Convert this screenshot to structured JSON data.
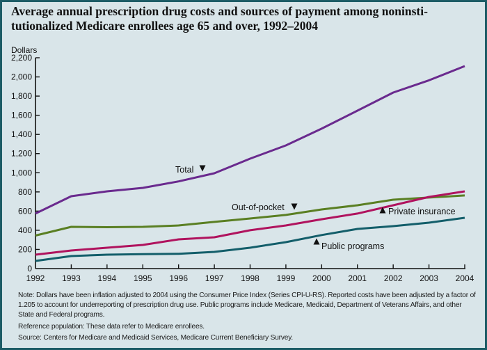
{
  "title": "Average annual prescription drug costs and sources of payment among noninsti-tutionalized Medicare enrollees age 65 and over, 1992–2004",
  "title_lines": [
    "Average annual prescription drug costs and sources of payment among noninsti-",
    "tutionalized Medicare enrollees age 65 and over, 1992–2004"
  ],
  "chart_data": {
    "type": "line",
    "title": "Average annual prescription drug costs and sources of payment among noninstitutionalized Medicare enrollees age 65 and over, 1992–2004",
    "xlabel": "",
    "ylabel": "Dollars",
    "x": [
      1992,
      1993,
      1994,
      1995,
      1996,
      1997,
      1998,
      1999,
      2000,
      2001,
      2002,
      2003,
      2004
    ],
    "x_tick_labels": [
      "1992",
      "1993",
      "1994",
      "1995",
      "1996",
      "1997",
      "1998",
      "1999",
      "2000",
      "2001",
      "2002",
      "2003",
      "2004"
    ],
    "ylim": [
      0,
      2200
    ],
    "y_ticks": [
      0,
      200,
      400,
      600,
      800,
      1000,
      1200,
      1400,
      1600,
      1800,
      2000,
      2200
    ],
    "y_tick_labels": [
      "0",
      "200",
      "400",
      "600",
      "800",
      "1,000",
      "1,200",
      "1,400",
      "1,600",
      "1,800",
      "2,000",
      "2,200"
    ],
    "grid": false,
    "legend": "inline annotations",
    "series": [
      {
        "name": "Total",
        "color": "#6a2a8e",
        "values": [
          574,
          755,
          806,
          842,
          910,
          995,
          1147,
          1285,
          1460,
          1648,
          1837,
          1965,
          2113
        ]
      },
      {
        "name": "Out-of-pocket",
        "color": "#5a7f23",
        "values": [
          345,
          436,
          432,
          436,
          450,
          487,
          523,
          560,
          617,
          661,
          719,
          741,
          763
        ]
      },
      {
        "name": "Private insurance",
        "color": "#b0135e",
        "values": [
          145,
          189,
          218,
          247,
          305,
          327,
          400,
          450,
          515,
          574,
          661,
          748,
          806
        ]
      },
      {
        "name": "Public programs",
        "color": "#135e6a",
        "values": [
          80,
          131,
          145,
          150,
          155,
          174,
          218,
          276,
          350,
          414,
          443,
          479,
          530
        ]
      }
    ],
    "annotations": [
      {
        "text": "Total",
        "marker": "down-triangle",
        "year": 1997
      },
      {
        "text": "Out-of-pocket",
        "marker": "down-triangle",
        "year": 1999
      },
      {
        "text": "Private insurance",
        "marker": "up-triangle",
        "year": 2002
      },
      {
        "text": "Public programs",
        "marker": "up-triangle",
        "year": 2000
      }
    ]
  },
  "notes": {
    "note": "Note:  Dollars have been inflation adjusted to 2004 using the Consumer Price Index (Series CPI-U-RS). Reported costs have been adjusted by a factor of 1.205 to account for underreporting of prescription drug use.  Public programs include Medicare, Medicaid, Department of Veterans Affairs, and other State and Federal programs.",
    "reference": "Reference population:  These data refer to Medicare enrollees.",
    "source": "Source:  Centers for Medicare and Medicaid Services, Medicare Current Beneficiary Survey."
  }
}
